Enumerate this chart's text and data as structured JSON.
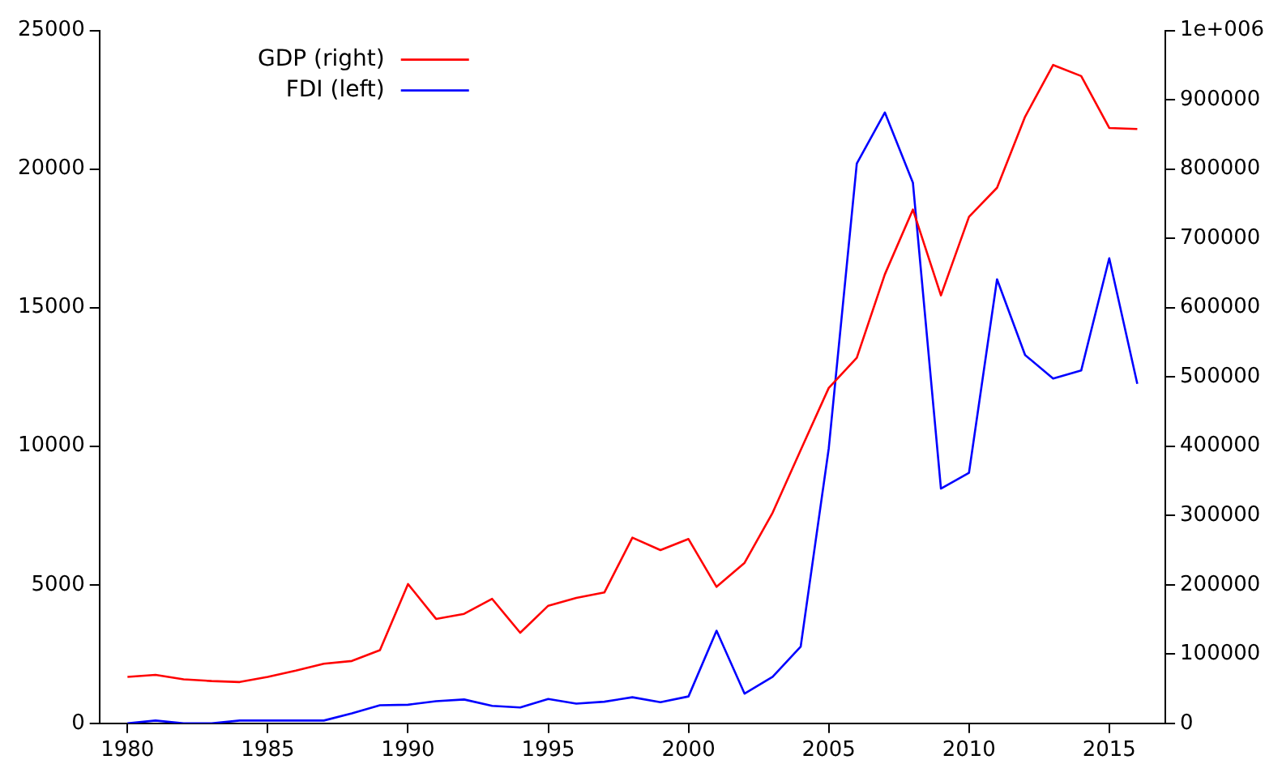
{
  "chart_data": {
    "type": "line",
    "x": [
      1980,
      1981,
      1982,
      1983,
      1984,
      1985,
      1986,
      1987,
      1988,
      1989,
      1990,
      1991,
      1992,
      1993,
      1994,
      1995,
      1996,
      1997,
      1998,
      1999,
      2000,
      2001,
      2002,
      2003,
      2004,
      2005,
      2006,
      2007,
      2008,
      2009,
      2010,
      2011,
      2012,
      2013,
      2014,
      2015,
      2016
    ],
    "series": [
      {
        "name": "GDP (right)",
        "color": "#ff0000",
        "axis": "y2",
        "values": [
          67000,
          70000,
          63500,
          61000,
          59600,
          67000,
          76000,
          86000,
          90000,
          105500,
          201000,
          150700,
          158000,
          179600,
          130700,
          169700,
          181000,
          188800,
          268000,
          250000,
          266000,
          197000,
          231600,
          304000,
          394500,
          484000,
          527500,
          648000,
          741500,
          617600,
          731000,
          773000,
          875500,
          950200,
          934200,
          859300,
          857800
        ]
      },
      {
        "name": "FDI (left)",
        "color": "#0000ff",
        "values": [
          0,
          100,
          0,
          0,
          100,
          100,
          100,
          100,
          360,
          650,
          670,
          800,
          860,
          630,
          570,
          880,
          710,
          780,
          940,
          760,
          970,
          3340,
          1070,
          1680,
          2770,
          9920,
          20200,
          22040,
          19510,
          8470,
          9040,
          16020,
          13290,
          12440,
          12730,
          16780,
          12250
        ]
      }
    ],
    "xlim": [
      1979,
      2017
    ],
    "xticks": [
      1980,
      1985,
      1990,
      1995,
      2000,
      2005,
      2010,
      2015
    ],
    "ylim": [
      0,
      25000
    ],
    "yticks": [
      0,
      5000,
      10000,
      15000,
      20000,
      25000
    ],
    "y2lim": [
      0,
      1000000
    ],
    "y2ticks": [
      0,
      100000,
      200000,
      300000,
      400000,
      500000,
      600000,
      700000,
      800000,
      {
        "value": 1000000,
        "label": "1e+006"
      },
      900000
    ],
    "grid": false,
    "legend": "top left",
    "marker": "none",
    "line_style": "solid"
  }
}
